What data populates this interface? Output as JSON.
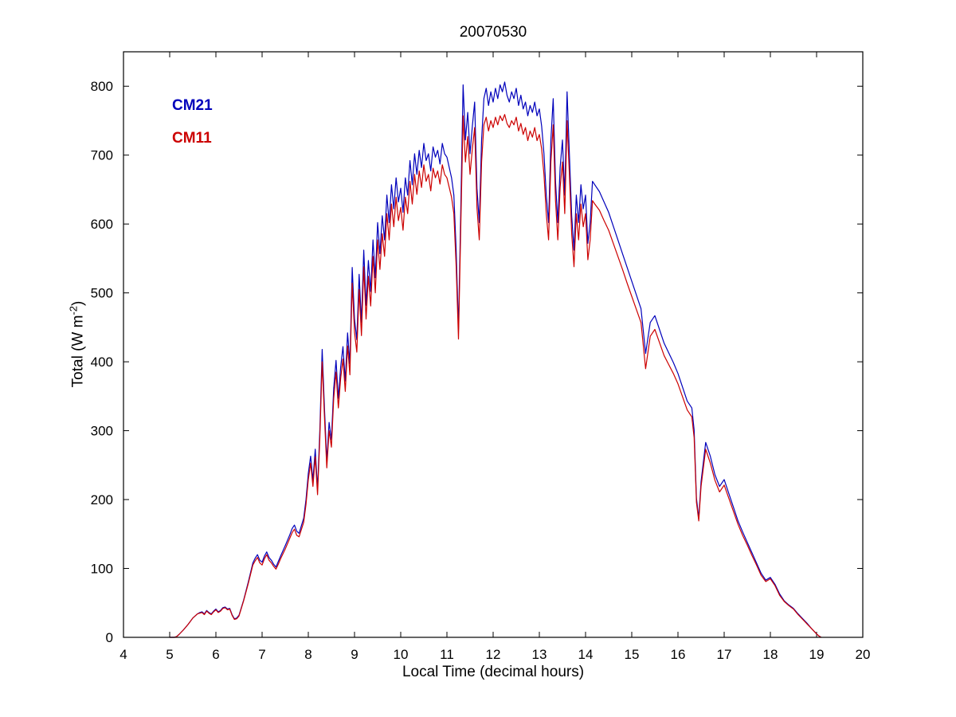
{
  "figure": {
    "background": "#ffffff"
  },
  "chart_data": {
    "type": "line",
    "title": "20070530",
    "xlabel": "Local Time (decimal hours)",
    "ylabel": "Total (W m-2)",
    "ylabel_parts": {
      "main": "Total (W m",
      "sup": "-2",
      "close": ")"
    },
    "xlim": [
      4,
      20
    ],
    "ylim": [
      0,
      850
    ],
    "x_ticks": [
      4,
      5,
      6,
      7,
      8,
      9,
      10,
      11,
      12,
      13,
      14,
      15,
      16,
      17,
      18,
      19,
      20
    ],
    "y_ticks": [
      0,
      100,
      200,
      300,
      400,
      500,
      600,
      700,
      800
    ],
    "grid": false,
    "legend_position": "upper-left-inside",
    "axis_color": "#000000",
    "series": [
      {
        "name": "CM21",
        "color": "#0000bb"
      },
      {
        "name": "CM11",
        "color": "#cc0000"
      }
    ],
    "points": [
      [
        5.0,
        0,
        0
      ],
      [
        5.1,
        0,
        0
      ],
      [
        5.15,
        1,
        1
      ],
      [
        5.2,
        4,
        4
      ],
      [
        5.3,
        11,
        11
      ],
      [
        5.4,
        19,
        19
      ],
      [
        5.5,
        28,
        28
      ],
      [
        5.6,
        34,
        34
      ],
      [
        5.65,
        36,
        35
      ],
      [
        5.7,
        37,
        36
      ],
      [
        5.75,
        34,
        33
      ],
      [
        5.8,
        39,
        38
      ],
      [
        5.85,
        36,
        35
      ],
      [
        5.9,
        34,
        33
      ],
      [
        5.95,
        38,
        37
      ],
      [
        6.0,
        41,
        40
      ],
      [
        6.05,
        37,
        36
      ],
      [
        6.1,
        39,
        38
      ],
      [
        6.15,
        43,
        42
      ],
      [
        6.2,
        44,
        43
      ],
      [
        6.25,
        41,
        40
      ],
      [
        6.3,
        42,
        41
      ],
      [
        6.35,
        33,
        32
      ],
      [
        6.4,
        27,
        26
      ],
      [
        6.45,
        28,
        27
      ],
      [
        6.5,
        32,
        31
      ],
      [
        6.6,
        54,
        53
      ],
      [
        6.7,
        80,
        78
      ],
      [
        6.8,
        108,
        105
      ],
      [
        6.85,
        115,
        111
      ],
      [
        6.9,
        120,
        116
      ],
      [
        6.95,
        112,
        108
      ],
      [
        7.0,
        109,
        105
      ],
      [
        7.05,
        118,
        114
      ],
      [
        7.1,
        124,
        120
      ],
      [
        7.15,
        116,
        112
      ],
      [
        7.2,
        112,
        108
      ],
      [
        7.25,
        106,
        103
      ],
      [
        7.3,
        102,
        99
      ],
      [
        7.35,
        110,
        106
      ],
      [
        7.4,
        118,
        114
      ],
      [
        7.5,
        133,
        128
      ],
      [
        7.6,
        149,
        144
      ],
      [
        7.65,
        158,
        152
      ],
      [
        7.7,
        163,
        157
      ],
      [
        7.75,
        154,
        148
      ],
      [
        7.8,
        151,
        146
      ],
      [
        7.9,
        173,
        167
      ],
      [
        7.95,
        200,
        193
      ],
      [
        8.0,
        238,
        229
      ],
      [
        8.05,
        263,
        253
      ],
      [
        8.1,
        228,
        219
      ],
      [
        8.15,
        273,
        262
      ],
      [
        8.2,
        215,
        207
      ],
      [
        8.25,
        302,
        290
      ],
      [
        8.3,
        418,
        400
      ],
      [
        8.35,
        332,
        319
      ],
      [
        8.4,
        256,
        246
      ],
      [
        8.45,
        312,
        300
      ],
      [
        8.5,
        287,
        276
      ],
      [
        8.55,
        362,
        347
      ],
      [
        8.6,
        402,
        385
      ],
      [
        8.65,
        347,
        333
      ],
      [
        8.7,
        392,
        376
      ],
      [
        8.75,
        422,
        404
      ],
      [
        8.8,
        372,
        357
      ],
      [
        8.85,
        442,
        423
      ],
      [
        8.9,
        397,
        381
      ],
      [
        8.95,
        537,
        514
      ],
      [
        9.0,
        462,
        443
      ],
      [
        9.05,
        432,
        414
      ],
      [
        9.1,
        527,
        505
      ],
      [
        9.15,
        457,
        438
      ],
      [
        9.2,
        562,
        538
      ],
      [
        9.25,
        482,
        462
      ],
      [
        9.3,
        547,
        524
      ],
      [
        9.35,
        502,
        481
      ],
      [
        9.4,
        577,
        553
      ],
      [
        9.45,
        522,
        500
      ],
      [
        9.5,
        602,
        577
      ],
      [
        9.55,
        557,
        534
      ],
      [
        9.6,
        612,
        586
      ],
      [
        9.65,
        577,
        553
      ],
      [
        9.7,
        642,
        615
      ],
      [
        9.75,
        602,
        577
      ],
      [
        9.8,
        657,
        629
      ],
      [
        9.85,
        622,
        596
      ],
      [
        9.9,
        667,
        639
      ],
      [
        9.95,
        632,
        605
      ],
      [
        10.0,
        652,
        624
      ],
      [
        10.05,
        617,
        591
      ],
      [
        10.1,
        667,
        639
      ],
      [
        10.15,
        642,
        615
      ],
      [
        10.2,
        692,
        662
      ],
      [
        10.25,
        657,
        629
      ],
      [
        10.3,
        702,
        672
      ],
      [
        10.35,
        672,
        643
      ],
      [
        10.4,
        707,
        677
      ],
      [
        10.45,
        682,
        653
      ],
      [
        10.5,
        717,
        686
      ],
      [
        10.55,
        692,
        662
      ],
      [
        10.6,
        702,
        672
      ],
      [
        10.65,
        677,
        648
      ],
      [
        10.7,
        712,
        681
      ],
      [
        10.75,
        697,
        667
      ],
      [
        10.8,
        707,
        677
      ],
      [
        10.85,
        687,
        658
      ],
      [
        10.9,
        717,
        686
      ],
      [
        10.95,
        702,
        672
      ],
      [
        11.0,
        697,
        667
      ],
      [
        11.05,
        682,
        653
      ],
      [
        11.1,
        667,
        639
      ],
      [
        11.15,
        642,
        615
      ],
      [
        11.2,
        562,
        538
      ],
      [
        11.25,
        447,
        433
      ],
      [
        11.3,
        622,
        596
      ],
      [
        11.35,
        802,
        757
      ],
      [
        11.4,
        722,
        690
      ],
      [
        11.45,
        762,
        727
      ],
      [
        11.5,
        702,
        672
      ],
      [
        11.55,
        742,
        709
      ],
      [
        11.6,
        777,
        740
      ],
      [
        11.65,
        652,
        624
      ],
      [
        11.7,
        602,
        577
      ],
      [
        11.75,
        722,
        690
      ],
      [
        11.8,
        782,
        744
      ],
      [
        11.85,
        797,
        755
      ],
      [
        11.9,
        772,
        735
      ],
      [
        11.95,
        792,
        750
      ],
      [
        12.0,
        777,
        740
      ],
      [
        12.05,
        797,
        755
      ],
      [
        12.1,
        782,
        744
      ],
      [
        12.15,
        802,
        757
      ],
      [
        12.2,
        792,
        750
      ],
      [
        12.25,
        806,
        759
      ],
      [
        12.3,
        787,
        746
      ],
      [
        12.35,
        777,
        740
      ],
      [
        12.4,
        792,
        750
      ],
      [
        12.45,
        782,
        744
      ],
      [
        12.5,
        797,
        755
      ],
      [
        12.55,
        772,
        735
      ],
      [
        12.6,
        787,
        746
      ],
      [
        12.65,
        767,
        730
      ],
      [
        12.7,
        777,
        740
      ],
      [
        12.75,
        757,
        721
      ],
      [
        12.8,
        772,
        735
      ],
      [
        12.85,
        762,
        726
      ],
      [
        12.9,
        777,
        740
      ],
      [
        12.95,
        757,
        721
      ],
      [
        13.0,
        767,
        730
      ],
      [
        13.05,
        742,
        709
      ],
      [
        13.1,
        702,
        672
      ],
      [
        13.15,
        642,
        615
      ],
      [
        13.2,
        602,
        577
      ],
      [
        13.25,
        722,
        690
      ],
      [
        13.3,
        782,
        744
      ],
      [
        13.35,
        662,
        634
      ],
      [
        13.4,
        602,
        577
      ],
      [
        13.45,
        682,
        653
      ],
      [
        13.5,
        722,
        690
      ],
      [
        13.55,
        642,
        615
      ],
      [
        13.6,
        792,
        750
      ],
      [
        13.65,
        702,
        672
      ],
      [
        13.7,
        612,
        586
      ],
      [
        13.75,
        562,
        538
      ],
      [
        13.8,
        642,
        615
      ],
      [
        13.85,
        602,
        577
      ],
      [
        13.9,
        657,
        629
      ],
      [
        13.95,
        622,
        596
      ],
      [
        14.0,
        642,
        615
      ],
      [
        14.05,
        572,
        548
      ],
      [
        14.1,
        602,
        577
      ],
      [
        14.15,
        662,
        634
      ],
      [
        14.2,
        657,
        629
      ],
      [
        14.3,
        647,
        620
      ],
      [
        14.4,
        632,
        605
      ],
      [
        14.5,
        617,
        591
      ],
      [
        14.6,
        597,
        572
      ],
      [
        14.7,
        577,
        553
      ],
      [
        14.8,
        557,
        534
      ],
      [
        14.9,
        537,
        514
      ],
      [
        15.0,
        517,
        495
      ],
      [
        15.1,
        497,
        476
      ],
      [
        15.2,
        477,
        457
      ],
      [
        15.3,
        412,
        390
      ],
      [
        15.4,
        457,
        437
      ],
      [
        15.5,
        467,
        447
      ],
      [
        15.6,
        447,
        428
      ],
      [
        15.7,
        427,
        409
      ],
      [
        15.8,
        413,
        396
      ],
      [
        15.9,
        399,
        383
      ],
      [
        16.0,
        383,
        368
      ],
      [
        16.1,
        363,
        349
      ],
      [
        16.2,
        343,
        330
      ],
      [
        16.3,
        333,
        320
      ],
      [
        16.35,
        301,
        290
      ],
      [
        16.4,
        202,
        196
      ],
      [
        16.45,
        173,
        169
      ],
      [
        16.5,
        226,
        219
      ],
      [
        16.6,
        283,
        273
      ],
      [
        16.7,
        263,
        253
      ],
      [
        16.8,
        236,
        228
      ],
      [
        16.9,
        219,
        211
      ],
      [
        17.0,
        229,
        221
      ],
      [
        17.1,
        209,
        202
      ],
      [
        17.2,
        189,
        183
      ],
      [
        17.3,
        169,
        164
      ],
      [
        17.4,
        153,
        148
      ],
      [
        17.5,
        138,
        134
      ],
      [
        17.6,
        123,
        119
      ],
      [
        17.7,
        108,
        105
      ],
      [
        17.8,
        93,
        90
      ],
      [
        17.9,
        83,
        81
      ],
      [
        18.0,
        87,
        85
      ],
      [
        18.1,
        77,
        75
      ],
      [
        18.2,
        63,
        61
      ],
      [
        18.3,
        53,
        52
      ],
      [
        18.4,
        47,
        46
      ],
      [
        18.5,
        42,
        41
      ],
      [
        18.6,
        34,
        33
      ],
      [
        18.7,
        27,
        26
      ],
      [
        18.8,
        20,
        19
      ],
      [
        18.9,
        12,
        12
      ],
      [
        19.0,
        5,
        5
      ],
      [
        19.05,
        2,
        2
      ],
      [
        19.1,
        0,
        0
      ]
    ]
  }
}
